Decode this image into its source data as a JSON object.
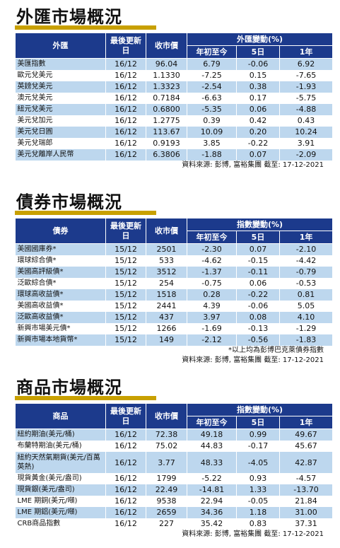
{
  "fx": {
    "title": "外匯市場概況",
    "headers": {
      "name": "外匯",
      "date": "最後更新日",
      "close": "收市價",
      "group": "外匯變動(%)",
      "ytd": "年初至今",
      "d5": "5日",
      "y1": "1年"
    },
    "rows": [
      {
        "name": "美匯指數",
        "date": "16/12",
        "close": "96.04",
        "ytd": "6.79",
        "d5": "-0.06",
        "y1": "6.92"
      },
      {
        "name": "歐元兌美元",
        "date": "16/12",
        "close": "1.1330",
        "ytd": "-7.25",
        "d5": "0.15",
        "y1": "-7.65"
      },
      {
        "name": "英鎊兌美元",
        "date": "16/12",
        "close": "1.3323",
        "ytd": "-2.54",
        "d5": "0.38",
        "y1": "-1.93"
      },
      {
        "name": "澳元兌美元",
        "date": "16/12",
        "close": "0.7184",
        "ytd": "-6.63",
        "d5": "0.17",
        "y1": "-5.75"
      },
      {
        "name": "紐元兌美元",
        "date": "16/12",
        "close": "0.6800",
        "ytd": "-5.35",
        "d5": "0.06",
        "y1": "-4.88"
      },
      {
        "name": "美元兌加元",
        "date": "16/12",
        "close": "1.2775",
        "ytd": "0.39",
        "d5": "0.42",
        "y1": "0.43"
      },
      {
        "name": "美元兌日圓",
        "date": "16/12",
        "close": "113.67",
        "ytd": "10.09",
        "d5": "0.20",
        "y1": "10.24"
      },
      {
        "name": "美元兌瑞郎",
        "date": "16/12",
        "close": "0.9193",
        "ytd": "3.85",
        "d5": "-0.22",
        "y1": "3.91"
      },
      {
        "name": "美元兌離岸人民幣",
        "date": "16/12",
        "close": "6.3806",
        "ytd": "-1.88",
        "d5": "0.07",
        "y1": "-2.09"
      }
    ],
    "source": "資料來源: 彭博, 富裕集團 截至: 17-12-2021"
  },
  "bonds": {
    "title": "債券市場概況",
    "headers": {
      "name": "債券",
      "date": "最後更新日",
      "close": "收市價",
      "group": "指數變動(%)",
      "ytd": "年初至今",
      "d5": "5日",
      "y1": "1年"
    },
    "rows": [
      {
        "name": "美國國庫券*",
        "date": "15/12",
        "close": "2501",
        "ytd": "-2.30",
        "d5": "0.07",
        "y1": "-2.10"
      },
      {
        "name": "環球綜合債*",
        "date": "15/12",
        "close": "533",
        "ytd": "-4.62",
        "d5": "-0.15",
        "y1": "-4.42"
      },
      {
        "name": "美國高評級債*",
        "date": "15/12",
        "close": "3512",
        "ytd": "-1.37",
        "d5": "-0.11",
        "y1": "-0.79"
      },
      {
        "name": "泛歐綜合債*",
        "date": "15/12",
        "close": "254",
        "ytd": "-0.75",
        "d5": "0.06",
        "y1": "-0.53"
      },
      {
        "name": "環球高收益債*",
        "date": "15/12",
        "close": "1518",
        "ytd": "0.28",
        "d5": "-0.22",
        "y1": "0.81"
      },
      {
        "name": "美國高收益債*",
        "date": "15/12",
        "close": "2441",
        "ytd": "4.39",
        "d5": "-0.06",
        "y1": "5.05"
      },
      {
        "name": "泛歐高收益債*",
        "date": "15/12",
        "close": "437",
        "ytd": "3.97",
        "d5": "0.08",
        "y1": "4.10"
      },
      {
        "name": "新興市場美元債*",
        "date": "15/12",
        "close": "1266",
        "ytd": "-1.69",
        "d5": "-0.13",
        "y1": "-1.29"
      },
      {
        "name": "新興市場本地貨幣*",
        "date": "15/12",
        "close": "149",
        "ytd": "-2.12",
        "d5": "-0.56",
        "y1": "-1.83"
      }
    ],
    "note": "*以上均為彭博巴克萊債券指數",
    "source": "資料來源: 彭博, 富裕集團 截至: 17-12-2021"
  },
  "commodities": {
    "title": "商品市場概況",
    "headers": {
      "name": "商品",
      "date": "最後更新日",
      "close": "收市價",
      "group": "指數變動(%)",
      "ytd": "年初至今",
      "d5": "5日",
      "y1": "1年"
    },
    "rows": [
      {
        "name": "紐約期油(美元/桶)",
        "date": "16/12",
        "close": "72.38",
        "ytd": "49.18",
        "d5": "0.99",
        "y1": "49.67"
      },
      {
        "name": "布蘭特期油(美元/桶)",
        "date": "16/12",
        "close": "75.02",
        "ytd": "44.83",
        "d5": "-0.17",
        "y1": "45.67"
      },
      {
        "name": "紐約天然氣期貨(美元/百萬英熱)",
        "date": "16/12",
        "close": "3.77",
        "ytd": "48.33",
        "d5": "-4.05",
        "y1": "42.87"
      },
      {
        "name": "現貨黃金(美元/盎司)",
        "date": "16/12",
        "close": "1799",
        "ytd": "-5.22",
        "d5": "0.93",
        "y1": "-4.57"
      },
      {
        "name": "現貨銀(美元/盎司)",
        "date": "16/12",
        "close": "22.49",
        "ytd": "-14.81",
        "d5": "1.33",
        "y1": "-13.70"
      },
      {
        "name": "LME 期銅(美元/噸)",
        "date": "16/12",
        "close": "9538",
        "ytd": "22.94",
        "d5": "-0.05",
        "y1": "21.84"
      },
      {
        "name": "LME 期鋁(美元/噸)",
        "date": "16/12",
        "close": "2659",
        "ytd": "34.36",
        "d5": "1.18",
        "y1": "31.00"
      },
      {
        "name": "CRB商品指數",
        "date": "16/12",
        "close": "227",
        "ytd": "35.42",
        "d5": "0.83",
        "y1": "37.31"
      }
    ],
    "source": "資料來源: 彭博, 富裕集團 截至: 17-12-2021"
  }
}
